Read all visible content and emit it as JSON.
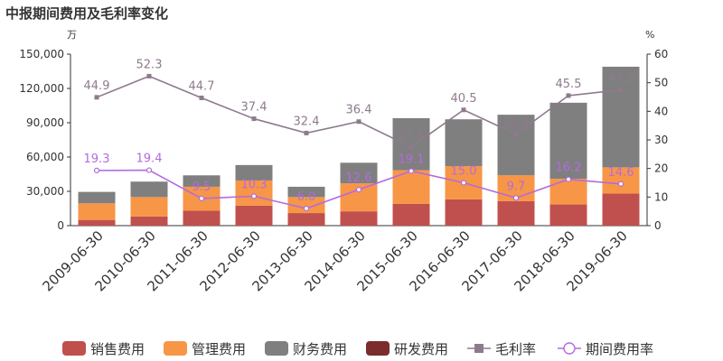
{
  "chart_data": {
    "type": "bar",
    "title": "中报期间费用及毛利率变化",
    "left_unit": "万",
    "right_unit": "%",
    "categories": [
      "2009-06-30",
      "2010-06-30",
      "2011-06-30",
      "2012-06-30",
      "2013-06-30",
      "2014-06-30",
      "2015-06-30",
      "2016-06-30",
      "2017-06-30",
      "2018-06-30",
      "2019-06-30"
    ],
    "ylim_left": [
      0,
      150000
    ],
    "yticks_left": [
      "0",
      "30,000",
      "60,000",
      "90,000",
      "120,000",
      "150,000"
    ],
    "ylim_right": [
      0,
      60
    ],
    "yticks_right": [
      "0",
      "10",
      "20",
      "30",
      "40",
      "50",
      "60"
    ],
    "bar_series": [
      {
        "name": "销售费用",
        "color": "#c0504d",
        "values": [
          5000,
          8000,
          13000,
          17500,
          11000,
          12500,
          19000,
          23000,
          21500,
          18500,
          28000
        ]
      },
      {
        "name": "管理费用",
        "color": "#f79646",
        "values": [
          14500,
          17000,
          21000,
          22000,
          14000,
          24500,
          29500,
          29000,
          22500,
          22500,
          23000
        ]
      },
      {
        "name": "财务费用",
        "color": "#7f7f7f",
        "values": [
          10000,
          13500,
          10000,
          13500,
          9000,
          18000,
          45500,
          41000,
          53000,
          66500,
          88000
        ]
      },
      {
        "name": "研发费用",
        "color": "#7b2c2c",
        "values": [
          0,
          0,
          0,
          0,
          0,
          0,
          0,
          0,
          0,
          0,
          0
        ]
      }
    ],
    "line_series": [
      {
        "name": "毛利率",
        "color": "#8e7a8e",
        "marker": "square",
        "values": [
          44.9,
          52.3,
          44.7,
          37.4,
          32.4,
          36.4,
          27.5,
          40.5,
          32.0,
          45.5,
          47.5
        ],
        "labels": [
          "44.9",
          "52.3",
          "44.7",
          "37.4",
          "32.4",
          "36.4",
          "27.5",
          "40.5",
          "32.0",
          "45.5",
          "47.5"
        ]
      },
      {
        "name": "期间费用率",
        "color": "#b36bdf",
        "marker": "circle",
        "values": [
          19.3,
          19.4,
          9.5,
          10.3,
          6.0,
          12.6,
          19.1,
          15.0,
          9.7,
          16.2,
          14.6
        ],
        "labels": [
          "19.3",
          "19.4",
          "9.5",
          "10.3",
          "6.0",
          "12.6",
          "19.1",
          "15.0",
          "9.7",
          "16.2",
          "14.6"
        ]
      }
    ],
    "legend_position": "bottom",
    "grid": false
  }
}
